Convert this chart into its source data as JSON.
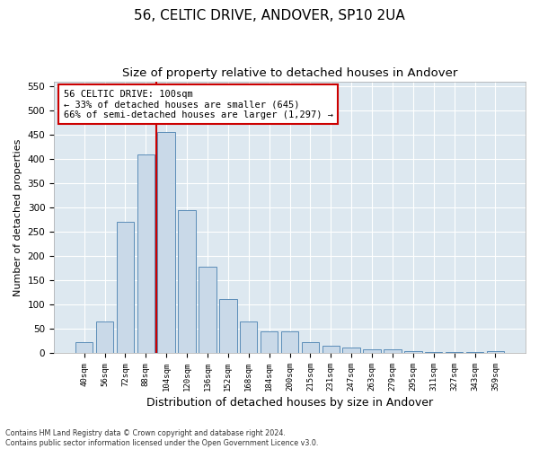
{
  "title1": "56, CELTIC DRIVE, ANDOVER, SP10 2UA",
  "title2": "Size of property relative to detached houses in Andover",
  "xlabel": "Distribution of detached houses by size in Andover",
  "ylabel": "Number of detached properties",
  "footnote": "Contains HM Land Registry data © Crown copyright and database right 2024.\nContains public sector information licensed under the Open Government Licence v3.0.",
  "bar_labels": [
    "40sqm",
    "56sqm",
    "72sqm",
    "88sqm",
    "104sqm",
    "120sqm",
    "136sqm",
    "152sqm",
    "168sqm",
    "184sqm",
    "200sqm",
    "215sqm",
    "231sqm",
    "247sqm",
    "263sqm",
    "279sqm",
    "295sqm",
    "311sqm",
    "327sqm",
    "343sqm",
    "359sqm"
  ],
  "bar_values": [
    22,
    65,
    270,
    410,
    455,
    295,
    178,
    112,
    65,
    44,
    44,
    22,
    15,
    12,
    8,
    8,
    4,
    2,
    2,
    2,
    3
  ],
  "bar_color": "#c9d9e8",
  "bar_edge_color": "#5b8db8",
  "vline_x_index": 3,
  "vline_color": "#cc0000",
  "annotation_text": "56 CELTIC DRIVE: 100sqm\n← 33% of detached houses are smaller (645)\n66% of semi-detached houses are larger (1,297) →",
  "annotation_box_facecolor": "#ffffff",
  "annotation_box_edgecolor": "#cc0000",
  "ylim": [
    0,
    560
  ],
  "yticks": [
    0,
    50,
    100,
    150,
    200,
    250,
    300,
    350,
    400,
    450,
    500,
    550
  ],
  "plot_bg_color": "#dde8f0",
  "title1_fontsize": 11,
  "title2_fontsize": 9.5,
  "xlabel_fontsize": 9,
  "ylabel_fontsize": 8,
  "annotation_fontsize": 7.5
}
